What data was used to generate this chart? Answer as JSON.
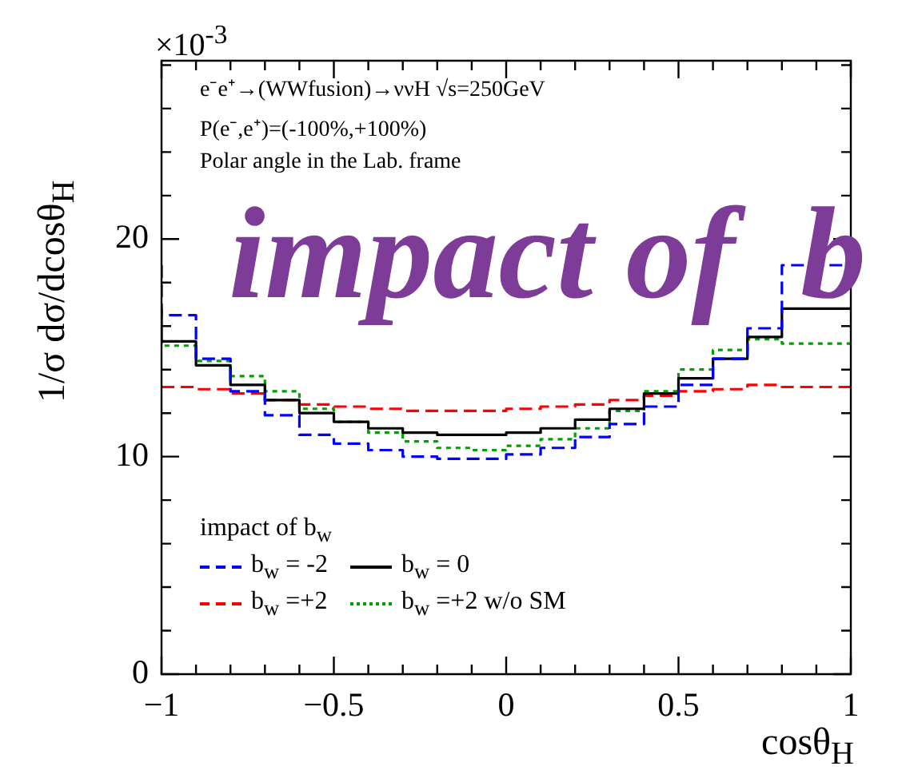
{
  "chart_data": {
    "type": "step",
    "xlabel": "cosθ$_{H}$",
    "ylabel": "1/σ dσ/dcosθ$_{H}$",
    "legend_title": "impact of b$_{w}$",
    "legend": "bottom left",
    "grid": false,
    "annotations": [
      "×10$^{-3}$",
      "e⁻e⁺→(WWfusion)→ννH  √s=250GeV",
      "P(e⁻,e⁺)=(-100%,+100%)",
      "Polar angle in the Lab. frame",
      "impact of  b"
    ],
    "x": [
      -1,
      -0.9,
      -0.8,
      -0.7,
      -0.6,
      -0.5,
      -0.4,
      -0.3,
      -0.2,
      -0.1,
      0,
      0.1,
      0.2,
      0.3,
      0.4,
      0.5,
      0.6,
      0.7,
      0.8,
      0.9,
      1
    ],
    "series": [
      {
        "name": "b$_{w}$ = -2",
        "color": "#0000ff",
        "line_style": "dashed",
        "values": [
          18.8,
          16.5,
          14.5,
          13.0,
          11.9,
          11.0,
          10.6,
          10.3,
          10.0,
          9.9,
          9.9,
          10.1,
          10.4,
          10.9,
          11.5,
          12.3,
          13.3,
          14.5,
          15.9,
          18.8,
          18.8
        ]
      },
      {
        "name": "b$_{w}$ = 0",
        "color": "#000000",
        "line_style": "solid",
        "values": [
          16.8,
          15.3,
          14.2,
          13.3,
          12.6,
          12.0,
          11.6,
          11.3,
          11.1,
          11.0,
          11.0,
          11.1,
          11.3,
          11.7,
          12.2,
          12.9,
          13.6,
          14.5,
          15.5,
          16.8,
          16.8
        ]
      },
      {
        "name": "b$_{w}$ =+2",
        "color": "#ff0000",
        "line_style": "dashed",
        "values": [
          13.2,
          13.2,
          13.1,
          12.9,
          12.6,
          12.4,
          12.3,
          12.2,
          12.1,
          12.1,
          12.1,
          12.2,
          12.3,
          12.4,
          12.6,
          12.8,
          13.0,
          13.1,
          13.3,
          13.2,
          13.2
        ]
      },
      {
        "name": "b$_{w}$ =+2 w/o SM",
        "color": "#00a000",
        "line_style": "dotted",
        "values": [
          15.4,
          15.1,
          14.4,
          13.7,
          13.0,
          12.2,
          11.6,
          11.1,
          10.7,
          10.4,
          10.3,
          10.5,
          10.8,
          11.3,
          12.1,
          13.0,
          14.0,
          14.9,
          15.4,
          15.2,
          15.2
        ]
      }
    ],
    "xlim": [
      -1,
      1
    ],
    "xticks": [
      {
        "value": -1,
        "label": "−1"
      },
      {
        "value": -0.9,
        "label": null
      },
      {
        "value": -0.8,
        "label": null
      },
      {
        "value": -0.7,
        "label": null
      },
      {
        "value": -0.6,
        "label": null
      },
      {
        "value": -0.5,
        "label": "−0.5"
      },
      {
        "value": -0.4,
        "label": null
      },
      {
        "value": -0.3,
        "label": null
      },
      {
        "value": -0.2,
        "label": null
      },
      {
        "value": -0.1,
        "label": null
      },
      0,
      {
        "value": 0.1,
        "label": null
      },
      {
        "value": 0.2,
        "label": null
      },
      {
        "value": 0.3,
        "label": null
      },
      {
        "value": 0.4,
        "label": null
      },
      0.5,
      {
        "value": 0.6,
        "label": null
      },
      {
        "value": 0.7,
        "label": null
      },
      {
        "value": 0.8,
        "label": null
      },
      {
        "value": 0.9,
        "label": null
      },
      1
    ],
    "ylim": [
      0,
      28.2
    ],
    "yticks": [
      0,
      {
        "value": 2,
        "label": null
      },
      {
        "value": 4,
        "label": null
      },
      {
        "value": 6,
        "label": null
      },
      {
        "value": 8,
        "label": null
      },
      10,
      {
        "value": 12,
        "label": null
      },
      {
        "value": 14,
        "label": null
      },
      {
        "value": 16,
        "label": null
      },
      {
        "value": 18,
        "label": null
      },
      20,
      {
        "value": 22,
        "label": null
      },
      {
        "value": 24,
        "label": null
      },
      {
        "value": 26,
        "label": null
      },
      {
        "value": 28,
        "label": null
      }
    ]
  }
}
